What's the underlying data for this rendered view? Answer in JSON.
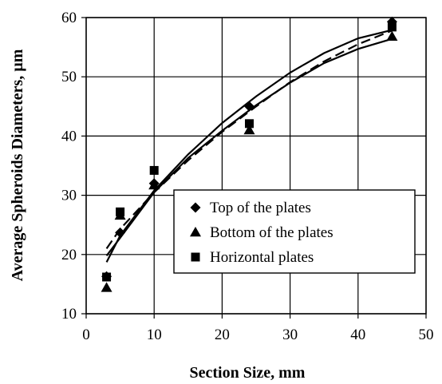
{
  "chart_data": {
    "type": "scatter",
    "title": "",
    "xlabel": "Section Size, mm",
    "ylabel": "Average Spheroids Diameters, µm",
    "xlim": [
      0,
      50
    ],
    "ylim": [
      10,
      60
    ],
    "x_ticks": [
      0,
      10,
      20,
      30,
      40,
      50
    ],
    "y_ticks": [
      10,
      20,
      30,
      40,
      50,
      60
    ],
    "x_tick_labels": [
      "0",
      "10",
      "20",
      "30",
      "40",
      "50"
    ],
    "y_tick_labels": [
      "10",
      "20",
      "30",
      "40",
      "50",
      "60"
    ],
    "grid": true,
    "legend_placement": "lower-right",
    "series": [
      {
        "name": "Top of the plates",
        "marker": "diamond",
        "x": [
          3,
          5,
          10,
          24,
          45
        ],
        "y": [
          16.3,
          23.7,
          32,
          45,
          59.3
        ]
      },
      {
        "name": "Bottom of the plates",
        "marker": "triangle",
        "x": [
          3,
          5,
          10,
          24,
          45
        ],
        "y": [
          14.4,
          26.6,
          31.7,
          41,
          56.8
        ]
      },
      {
        "name": "Horizontal plates",
        "marker": "square",
        "x": [
          3,
          5,
          10,
          24,
          45
        ],
        "y": [
          16.2,
          27.2,
          34.2,
          42.1,
          58.4
        ]
      }
    ],
    "trendlines": [
      {
        "style": "solid",
        "x": [
          3,
          5,
          10,
          15,
          20,
          25,
          30,
          35,
          40,
          45
        ],
        "y": [
          18.7,
          23.2,
          30.8,
          36.9,
          42.2,
          46.7,
          50.7,
          54,
          56.5,
          57.9
        ]
      },
      {
        "style": "solid",
        "x": [
          3,
          5,
          10,
          15,
          20,
          25,
          30,
          35,
          40,
          45
        ],
        "y": [
          19.8,
          22.8,
          30.5,
          36.3,
          40.9,
          45.2,
          49,
          52.3,
          54.7,
          56.4
        ]
      },
      {
        "style": "dashed",
        "x": [
          3,
          5,
          10,
          15,
          20,
          25,
          30,
          35,
          40,
          45
        ],
        "y": [
          21,
          24.3,
          30.5,
          35.9,
          40.7,
          45,
          49.1,
          52.6,
          55.5,
          57.8
        ]
      }
    ],
    "colors": {
      "marker": "#000000",
      "line": "#000000",
      "grid": "#000000"
    }
  }
}
